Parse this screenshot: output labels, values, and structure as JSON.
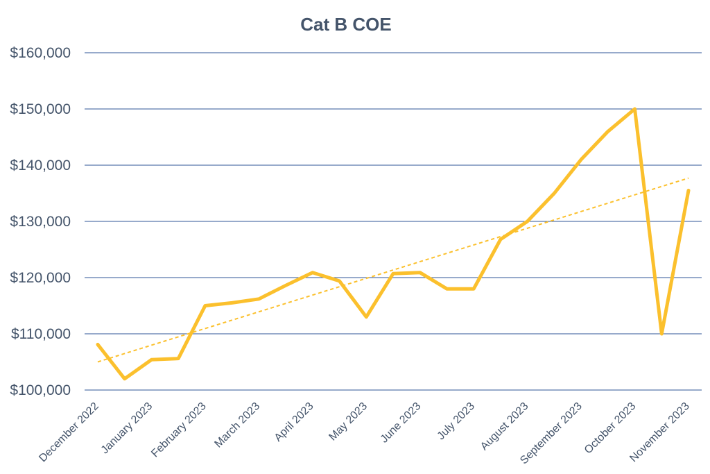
{
  "chart_data": {
    "type": "line",
    "title": "Cat B COE",
    "xlabel": "",
    "ylabel": "",
    "ylim": [
      100000,
      160000
    ],
    "yticks": [
      100000,
      110000,
      120000,
      130000,
      140000,
      150000,
      160000
    ],
    "ytick_labels": [
      "$100,000",
      "$110,000",
      "$120,000",
      "$130,000",
      "$140,000",
      "$150,000",
      "$160,000"
    ],
    "x_tick_labels": [
      "December 2022",
      "January 2023",
      "February 2023",
      "March 2023",
      "April 2023",
      "May 2023",
      "June 2023",
      "July 2023",
      "August 2023",
      "September 2023",
      "October 2023",
      "November 2023"
    ],
    "grid": true,
    "series": [
      {
        "color": "#fbc02d",
        "values": [
          108100,
          102000,
          105400,
          105600,
          115000,
          115500,
          116200,
          118600,
          120900,
          119400,
          113000,
          120700,
          120900,
          118000,
          118000,
          126800,
          130000,
          135000,
          141000,
          146000,
          150000,
          110000,
          135500
        ]
      }
    ],
    "trendline": {
      "type": "linear",
      "style": "dashed",
      "color": "#fbc02d",
      "start": 105000,
      "end": 137700
    }
  }
}
